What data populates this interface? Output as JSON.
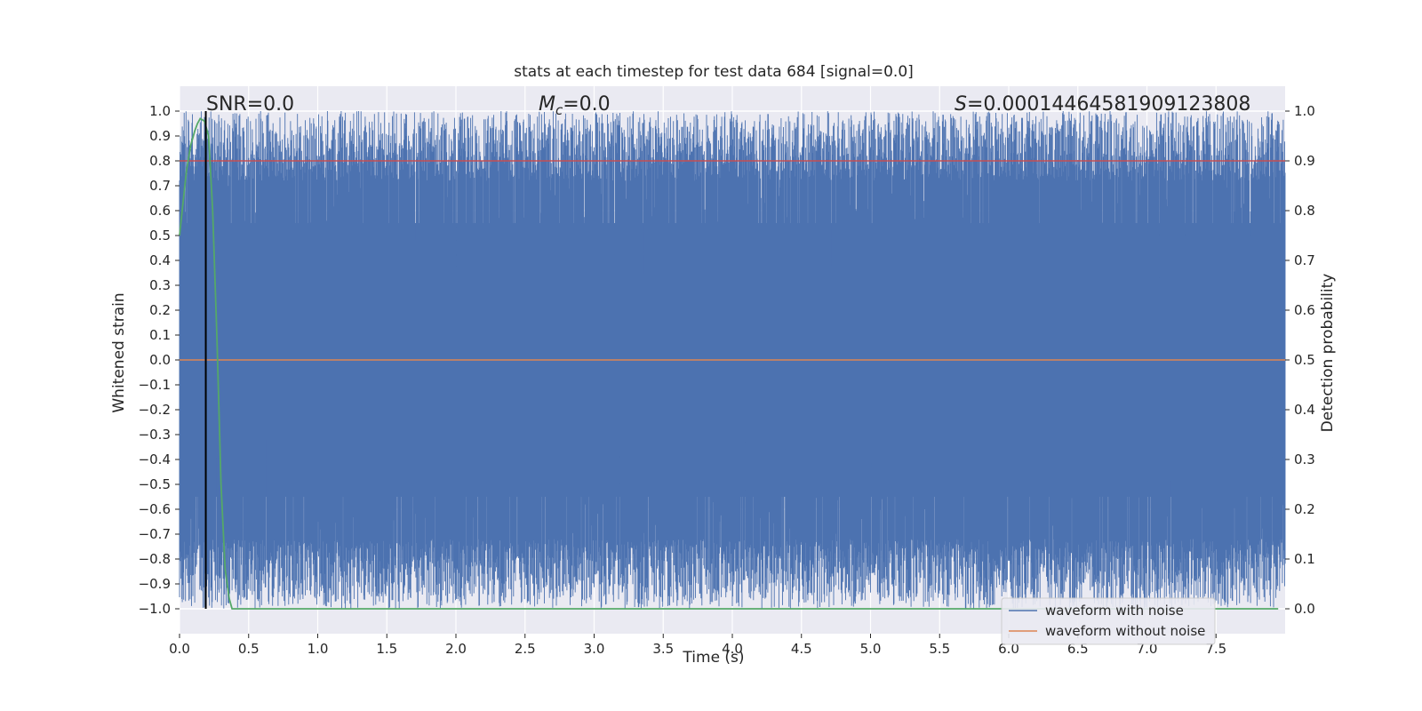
{
  "chart_data": {
    "type": "line",
    "title": "stats at each timestep for test data 684 [signal=0.0]",
    "xlabel": "Time (s)",
    "ylabel": "Whitened strain",
    "y2label": "Detection probability",
    "xlim": [
      0.0,
      8.0
    ],
    "ylim": [
      -1.1,
      1.1
    ],
    "y2lim": [
      -0.05,
      1.05
    ],
    "x_ticks": [
      0.0,
      0.5,
      1.0,
      1.5,
      2.0,
      2.5,
      3.0,
      3.5,
      4.0,
      4.5,
      5.0,
      5.5,
      6.0,
      6.5,
      7.0,
      7.5
    ],
    "x_tick_labels": [
      "0.0",
      "0.5",
      "1.0",
      "1.5",
      "2.0",
      "2.5",
      "3.0",
      "3.5",
      "4.0",
      "4.5",
      "5.0",
      "5.5",
      "6.0",
      "6.5",
      "7.0",
      "7.5"
    ],
    "y_ticks": [
      1.0,
      0.9,
      0.8,
      0.7,
      0.6,
      0.5,
      0.4,
      0.3,
      0.2,
      0.1,
      0.0,
      -0.1,
      -0.2,
      -0.3,
      -0.4,
      -0.5,
      -0.6,
      -0.7,
      -0.8,
      -0.9,
      -1.0
    ],
    "y_tick_labels": [
      "1.0",
      "0.9",
      "0.8",
      "0.7",
      "0.6",
      "0.5",
      "0.4",
      "0.3",
      "0.2",
      "0.1",
      "0.0",
      "−0.1",
      "−0.2",
      "−0.3",
      "−0.4",
      "−0.5",
      "−0.6",
      "−0.7",
      "−0.8",
      "−0.9",
      "−1.0"
    ],
    "y2_ticks": [
      1.0,
      0.9,
      0.8,
      0.7,
      0.6,
      0.5,
      0.4,
      0.3,
      0.2,
      0.1,
      0.0
    ],
    "y2_tick_labels": [
      "1.0",
      "0.9",
      "0.8",
      "0.7",
      "0.6",
      "0.5",
      "0.4",
      "0.3",
      "0.2",
      "0.1",
      "0.0"
    ],
    "grid": true,
    "legend_position": "bottom-right",
    "annotations": {
      "snr": "SNR=0.0",
      "mc_symbol": "M",
      "mc_sub": "c",
      "mc_value": "=0.0",
      "s_symbol": "S",
      "s_value": "=0.00014464581909123808"
    },
    "vertical_line_x": 0.19,
    "series": [
      {
        "name": "waveform with noise",
        "color": "#4c72b0",
        "description_values": "dense whitened noise filling range",
        "envelope_top": 1.0,
        "envelope_bottom": -1.0
      },
      {
        "name": "waveform without noise",
        "color": "#dd8452",
        "values_constant": 0.0
      },
      {
        "color": "#55a868",
        "axis": "right",
        "x": [
          0.0,
          0.05,
          0.08,
          0.11,
          0.13,
          0.15,
          0.18,
          0.21,
          0.24,
          0.27,
          0.3,
          0.33,
          0.36,
          0.38,
          0.45,
          1.0,
          2.0,
          3.0,
          4.0,
          5.0,
          6.0,
          7.0,
          7.95
        ],
        "values": [
          0.75,
          0.88,
          0.93,
          0.96,
          0.975,
          0.985,
          0.98,
          0.95,
          0.8,
          0.55,
          0.25,
          0.08,
          0.02,
          0.0,
          0.0,
          0.0,
          0.0,
          0.0,
          0.0,
          0.0,
          0.0,
          0.0,
          0.0
        ]
      },
      {
        "color": "#c44e52",
        "axis": "right",
        "values_constant": 0.9
      }
    ],
    "colors": {
      "plot_bg": "#eaeaf2",
      "grid": "#ffffff",
      "vline": "#000000"
    }
  }
}
